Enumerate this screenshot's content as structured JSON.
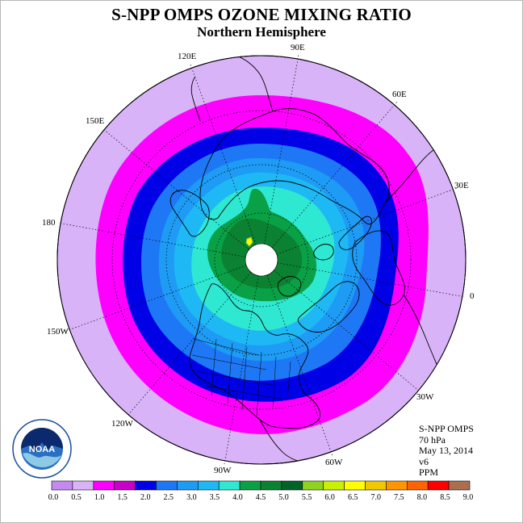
{
  "title": "S-NPP OMPS OZONE MIXING RATIO",
  "subtitle": "Northern Hemisphere",
  "info": {
    "instrument": "S-NPP OMPS",
    "level": "70 hPa",
    "date": "May 13, 2014",
    "version": "v6",
    "units": "PPM"
  },
  "logo": {
    "text": "NOAA"
  },
  "longitude_labels": [
    "90E",
    "60E",
    "30E",
    "0",
    "30W",
    "60W",
    "90W",
    "120W",
    "150W",
    "180",
    "150E",
    "120E"
  ],
  "colorbar": {
    "colors": [
      "#c48af2",
      "#d9b3f8",
      "#ff00ff",
      "#c800c8",
      "#0000e6",
      "#1e78f5",
      "#1e9bf5",
      "#1eb9f5",
      "#2ee8d2",
      "#0aa046",
      "#0a8232",
      "#006428",
      "#91d21e",
      "#c8f000",
      "#ffff00",
      "#f0c800",
      "#ff9600",
      "#ff6400",
      "#ff0000",
      "#aa6e50"
    ],
    "labels": [
      "0.0",
      "0.5",
      "1.0",
      "1.5",
      "2.0",
      "2.5",
      "3.0",
      "3.5",
      "4.0",
      "4.5",
      "5.0",
      "5.5",
      "6.0",
      "6.5",
      "7.0",
      "7.5",
      "8.0",
      "8.5",
      "9.0"
    ]
  },
  "colors": {
    "outer_ring": "#d9b3f8",
    "magenta_ring": "#ff00ff",
    "dark_blue": "#0000e6",
    "mid_blue": "#1e78f5",
    "light_blue": "#1e9bf5",
    "sky_blue": "#1eb9f5",
    "cyan": "#2ee8d2",
    "green": "#0aa046",
    "dark_green": "#0a8232",
    "peak": "#ffff00"
  }
}
